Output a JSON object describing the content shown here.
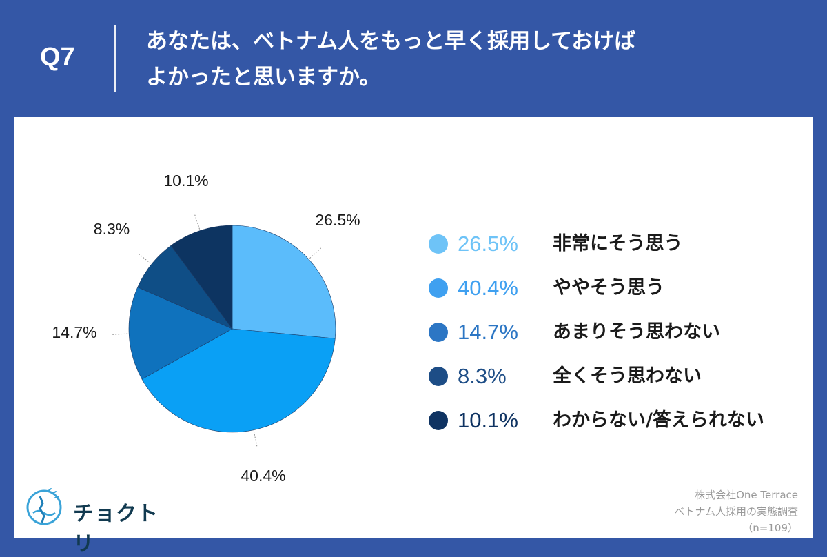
{
  "question": {
    "number": "Q7",
    "line1": "あなたは、ベトナム人をもっと早く採用しておけば",
    "line2": "よかったと思いますか。"
  },
  "colors": {
    "background": "#3457a6",
    "card": "#ffffff",
    "slices": [
      "#5bbcfb",
      "#0aa0f5",
      "#0f72bd",
      "#0f4e86",
      "#0d3461"
    ],
    "legend_dots": [
      "#6ec3f7",
      "#3fa0f0",
      "#2c76c4",
      "#1d4d86",
      "#0f3362"
    ]
  },
  "chart_data": {
    "type": "pie",
    "slices": [
      {
        "label": "非常にそう思う",
        "value": 26.5,
        "value_label": "26.5%"
      },
      {
        "label": "ややそう思う",
        "value": 40.4,
        "value_label": "40.4%"
      },
      {
        "label": "あまりそう思わない",
        "value": 14.7,
        "value_label": "14.7%"
      },
      {
        "label": "全くそう思わない",
        "value": 8.3,
        "value_label": "8.3%"
      },
      {
        "label": "わからない/答えられない",
        "value": 10.1,
        "value_label": "10.1%"
      }
    ],
    "start": "12 o'clock",
    "direction": "clockwise",
    "legend_position": "right"
  },
  "brand": {
    "name": "チョクトリ",
    "icon": "globe-logo-icon"
  },
  "source": {
    "company": "株式会社One Terrace",
    "survey": "ベトナム人採用の実態調査",
    "sample": "（n=109）"
  }
}
